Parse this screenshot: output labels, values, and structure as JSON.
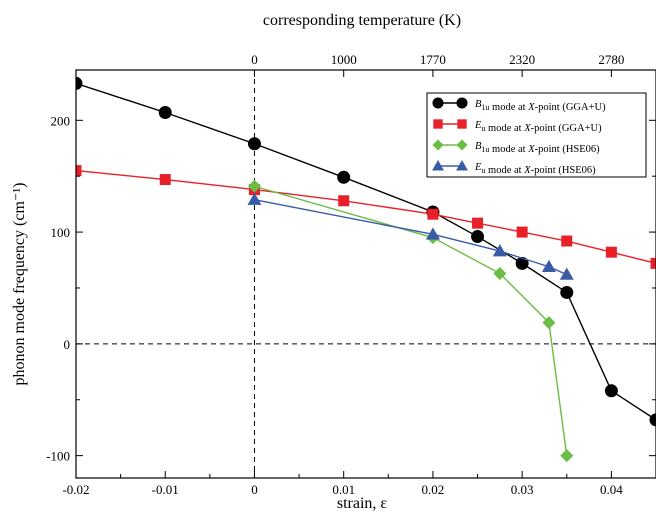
{
  "chart_data": {
    "type": "line",
    "xlabel": "strain, ε",
    "ylabel": "phonon mode frequency (cm⁻¹)",
    "top_axis_label": "corresponding temperature (K)",
    "xlim": [
      -0.02,
      0.045
    ],
    "ylim": [
      -120,
      245
    ],
    "x_ticks": [
      -0.02,
      -0.01,
      0,
      0.01,
      0.02,
      0.03,
      0.04
    ],
    "x_tick_labels": [
      "-0.02",
      "-0.01",
      "0",
      "0.01",
      "0.02",
      "0.03",
      "0.04"
    ],
    "y_ticks": [
      -100,
      0,
      100,
      200
    ],
    "y_tick_labels": [
      "-100",
      "0",
      "100",
      "200"
    ],
    "top_ticks": [
      {
        "strain": 0,
        "label": "0"
      },
      {
        "strain": 0.01,
        "label": "1000"
      },
      {
        "strain": 0.02,
        "label": "1770"
      },
      {
        "strain": 0.03,
        "label": "2320"
      },
      {
        "strain": 0.04,
        "label": "2780"
      }
    ],
    "reference_lines": {
      "x": 0,
      "y": 0
    },
    "legend_position": "top-right",
    "series": [
      {
        "name": "B1u mode at X-point (GGA+U)",
        "legend": {
          "mode": "B",
          "sub": "1u",
          "rest": " mode at ",
          "point": "X",
          "method": "-point (GGA+U)"
        },
        "color": "#000000",
        "marker": "circle",
        "x": [
          -0.02,
          -0.01,
          0,
          0.01,
          0.02,
          0.025,
          0.03,
          0.035,
          0.04,
          0.045
        ],
        "y": [
          233,
          207,
          179,
          149,
          118,
          96,
          72,
          46,
          -42,
          -68
        ]
      },
      {
        "name": "Eu mode at X-point (GGA+U)",
        "legend": {
          "mode": "E",
          "sub": "u",
          "rest": " mode at ",
          "point": "X",
          "method": "-point (GGA+U)"
        },
        "color": "#e8202a",
        "marker": "square",
        "x": [
          -0.02,
          -0.01,
          0,
          0.01,
          0.02,
          0.025,
          0.03,
          0.035,
          0.04,
          0.045
        ],
        "y": [
          155,
          147,
          138,
          128,
          116,
          108,
          100,
          92,
          82,
          72
        ]
      },
      {
        "name": "B1u mode at X-point (HSE06)",
        "legend": {
          "mode": "B",
          "sub": "1u",
          "rest": " mode at ",
          "point": "X",
          "method": "-point (HSE06)"
        },
        "color": "#6cbd45",
        "marker": "diamond",
        "x": [
          0,
          0.02,
          0.0275,
          0.033,
          0.035
        ],
        "y": [
          141,
          95,
          63,
          19,
          -100
        ]
      },
      {
        "name": "Eu mode at X-point (HSE06)",
        "legend": {
          "mode": "E",
          "sub": "u",
          "rest": " mode at ",
          "point": "X",
          "method": "-point (HSE06)"
        },
        "color": "#3a5ba8",
        "marker": "triangle",
        "x": [
          0,
          0.02,
          0.0275,
          0.033,
          0.035
        ],
        "y": [
          129,
          98,
          83,
          69,
          62
        ]
      }
    ]
  }
}
